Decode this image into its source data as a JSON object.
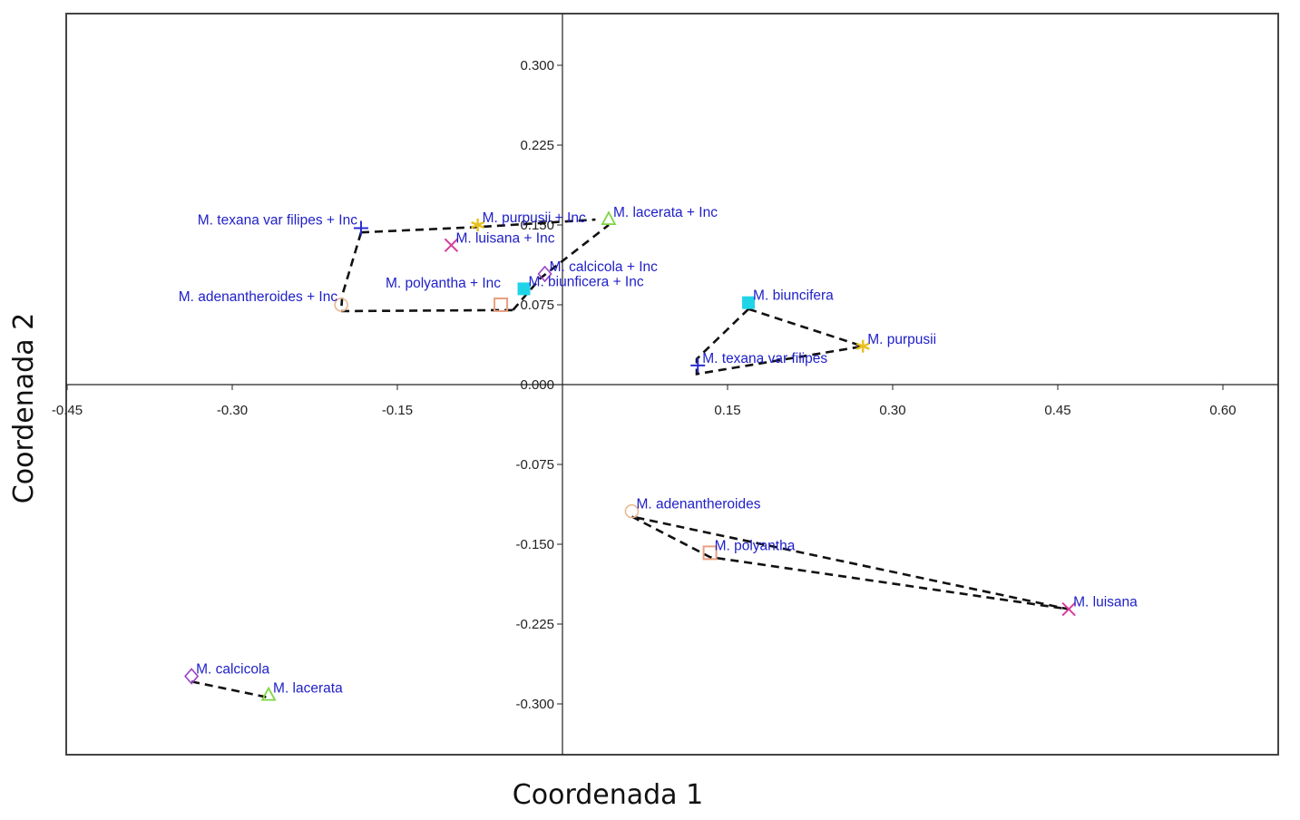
{
  "chart_data": {
    "type": "scatter",
    "title": "",
    "xlabel": "Coordenada 1",
    "ylabel": "Coordenada 2",
    "xlim": [
      -0.45,
      0.65
    ],
    "ylim": [
      -0.35,
      0.35
    ],
    "xticks": [
      -0.45,
      -0.3,
      -0.15,
      0.15,
      0.3,
      0.45,
      0.6
    ],
    "xtick_labels": [
      "-0.45",
      "-0.30",
      "-0.15",
      "0.15",
      "0.30",
      "0.45",
      "0.60"
    ],
    "yticks": [
      0.3,
      0.225,
      0.15,
      0.075,
      0.0,
      -0.075,
      -0.15,
      -0.225,
      -0.3
    ],
    "ytick_labels": [
      "0.300",
      "0.225",
      "0.150",
      "0.075",
      "0.000",
      "-0.075",
      "-0.150",
      "-0.225",
      "-0.300"
    ],
    "grid": false,
    "points": [
      {
        "id": "tex-inc",
        "label": "M. texana var filipes + Inc",
        "x": -0.183,
        "y": 0.147,
        "marker": "plus",
        "color": "#2b2bd4",
        "label_side": "left"
      },
      {
        "id": "pur-inc",
        "label": "M. purpusii + Inc",
        "x": -0.077,
        "y": 0.15,
        "marker": "star",
        "color": "#e8c020",
        "label_side": "right"
      },
      {
        "id": "luis-inc",
        "label": "M. luisana + Inc",
        "x": -0.101,
        "y": 0.131,
        "marker": "x",
        "color": "#d83c9c",
        "label_side": "right"
      },
      {
        "id": "lac-inc",
        "label": "M. lacerata + Inc",
        "x": 0.042,
        "y": 0.155,
        "marker": "triangle",
        "color": "#7cd640",
        "label_side": "right"
      },
      {
        "id": "calc-inc",
        "label": "M. calcicola + Inc",
        "x": -0.016,
        "y": 0.104,
        "marker": "diamond",
        "color": "#9b40c8",
        "label_side": "right"
      },
      {
        "id": "biu-inc",
        "label": "M. biunficera + Inc",
        "x": -0.035,
        "y": 0.09,
        "marker": "square-filled",
        "color": "#20d4e8",
        "label_side": "right"
      },
      {
        "id": "poly-inc",
        "label": "M. polyantha + Inc",
        "x": -0.056,
        "y": 0.075,
        "marker": "square",
        "color": "#e8a080",
        "label_side": "left-up"
      },
      {
        "id": "aden-inc",
        "label": "M. adenantheroides + Inc",
        "x": -0.201,
        "y": 0.075,
        "marker": "circle",
        "color": "#e8b890",
        "label_side": "left"
      },
      {
        "id": "biu",
        "label": "M. biuncifera",
        "x": 0.169,
        "y": 0.077,
        "marker": "square-filled",
        "color": "#20d4e8",
        "label_side": "right"
      },
      {
        "id": "pur",
        "label": "M. purpusii",
        "x": 0.273,
        "y": 0.036,
        "marker": "star",
        "color": "#e8c020",
        "label_side": "right"
      },
      {
        "id": "tex",
        "label": "M. texana var filipes",
        "x": 0.123,
        "y": 0.018,
        "marker": "plus",
        "color": "#2b2bd4",
        "label_side": "right"
      },
      {
        "id": "aden",
        "label": "M. adenantheroides",
        "x": 0.063,
        "y": -0.119,
        "marker": "circle",
        "color": "#e8b890",
        "label_side": "right"
      },
      {
        "id": "poly",
        "label": "M. polyantha",
        "x": 0.134,
        "y": -0.158,
        "marker": "square",
        "color": "#e8a080",
        "label_side": "right"
      },
      {
        "id": "luis",
        "label": "M. luisana",
        "x": 0.46,
        "y": -0.211,
        "marker": "x",
        "color": "#d83c9c",
        "label_side": "right"
      },
      {
        "id": "calc",
        "label": "M. calcicola",
        "x": -0.337,
        "y": -0.274,
        "marker": "diamond",
        "color": "#9b40c8",
        "label_side": "right"
      },
      {
        "id": "lac",
        "label": "M. lacerata",
        "x": -0.267,
        "y": -0.292,
        "marker": "triangle",
        "color": "#7cd640",
        "label_side": "right"
      }
    ],
    "hull_lines": [
      [
        [
          -0.183,
          0.143
        ],
        [
          -0.077,
          0.148
        ],
        [
          0.03,
          0.155
        ]
      ],
      [
        [
          -0.183,
          0.143
        ],
        [
          -0.2,
          0.084
        ],
        [
          -0.201,
          0.069
        ]
      ],
      [
        [
          -0.201,
          0.069
        ],
        [
          -0.056,
          0.07
        ],
        [
          -0.045,
          0.07
        ]
      ],
      [
        [
          -0.045,
          0.07
        ],
        [
          -0.02,
          0.1
        ],
        [
          0.042,
          0.15
        ]
      ],
      [
        [
          0.169,
          0.071
        ],
        [
          0.122,
          0.024
        ],
        [
          0.122,
          0.01
        ],
        [
          0.273,
          0.036
        ],
        [
          0.169,
          0.071
        ]
      ],
      [
        [
          0.063,
          -0.124
        ],
        [
          0.134,
          -0.162
        ],
        [
          0.46,
          -0.211
        ],
        [
          0.063,
          -0.124
        ]
      ],
      [
        [
          -0.337,
          -0.279
        ],
        [
          -0.267,
          -0.294
        ]
      ]
    ]
  }
}
